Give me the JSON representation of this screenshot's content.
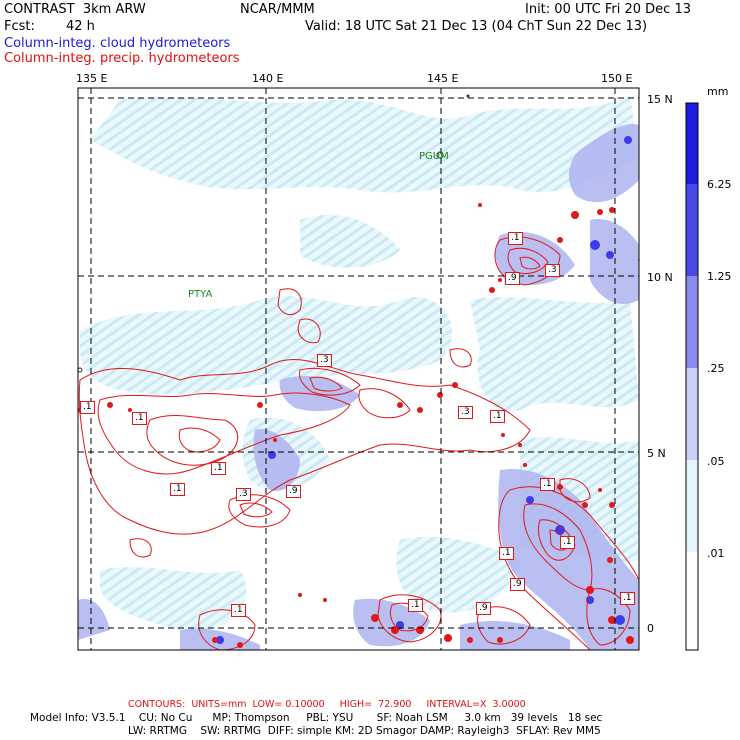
{
  "header": {
    "title": "CONTRAST  3km ARW",
    "org": "NCAR/MMM",
    "init": "Init: 00 UTC Fri 20 Dec 13",
    "fcst_label": "Fcst:",
    "fcst_value": "42 h",
    "valid": "Valid: 18 UTC Sat 21 Dec 13 (04 ChT Sun 22 Dec 13)",
    "field1": "Column-integ. cloud hydrometeors",
    "field2": "Column-integ. precip. hydrometeors"
  },
  "axes": {
    "lon_labels": [
      "135 E",
      "140 E",
      "145 E",
      "150 E"
    ],
    "lat_labels": [
      "15 N",
      "10 N",
      "5 N",
      "0"
    ]
  },
  "places": [
    "PGUM",
    "PTYA"
  ],
  "legend": {
    "unit": "mm",
    "levels": [
      "6.25",
      "1.25",
      ".25",
      ".05",
      ".01"
    ],
    "colors": [
      "#1c1ce0",
      "#4848e8",
      "#8a8af0",
      "#c8d0f8",
      "#e4f6fc",
      "#ffffff"
    ]
  },
  "contour_labels": [
    ".1",
    ".3",
    ".9",
    ".1",
    ".3",
    ".1",
    ".3",
    ".1",
    ".1",
    ".3",
    ".9",
    ".1",
    ".1",
    ".9",
    ".1",
    ".1",
    ".9",
    ".1",
    ".1",
    ".1"
  ],
  "footer": {
    "contours": "CONTOURS:  UNITS=mm  LOW= 0.10000     HIGH=  72.900     INTERVAL=X  3.0000",
    "model_line1": "Model Info: V3.5.1    CU: No Cu      MP: Thompson     PBL: YSU       SF: Noah LSM     3.0 km   39 levels   18 sec",
    "model_line2": "LW: RRTMG    SW: RRTMG  DIFF: simple KM: 2D Smagor DAMP: Rayleigh3  SFLAY: Rev MM5"
  }
}
